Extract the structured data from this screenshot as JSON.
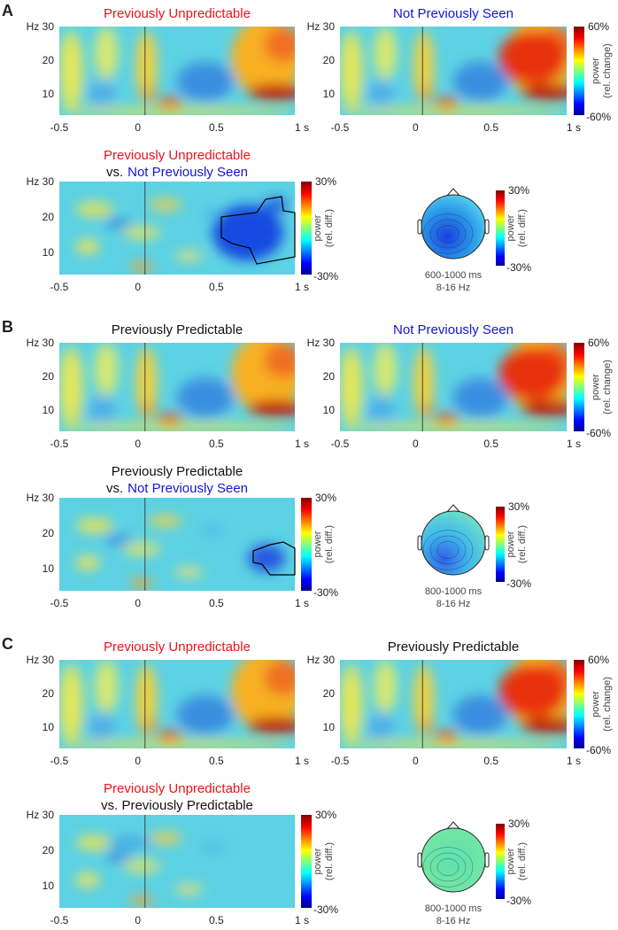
{
  "axes": {
    "yticks": [
      "Hz 30",
      "20",
      "10"
    ],
    "xticks": [
      "-0.5",
      "0",
      "0.5",
      "1 s"
    ]
  },
  "condition_colorbar": {
    "max": "60%",
    "min": "-60%",
    "label": [
      "power",
      "(rel. change)"
    ]
  },
  "difference_colorbar": {
    "max": "30%",
    "min": "-30%",
    "label": [
      "power",
      "(rel. diff.)"
    ]
  },
  "panels": [
    {
      "label": "A",
      "top_left": [
        {
          "text": "Previously Unpredictable",
          "color": "#e8141c"
        }
      ],
      "top_right": [
        {
          "text": "Not Previously Seen",
          "color": "#1414d8"
        }
      ],
      "contrast": [
        [
          {
            "text": "Previously Unpredictable",
            "color": "#e8141c"
          }
        ],
        [
          {
            "text": "vs.",
            "color": "#111111"
          },
          {
            "text": "Not Previously Seen",
            "color": "#1414d8"
          }
        ]
      ],
      "topo": {
        "window": "600-1000 ms",
        "band": "8-16 Hz"
      }
    },
    {
      "label": "B",
      "top_left": [
        {
          "text": "Previously Predictable",
          "color": "#111111"
        }
      ],
      "top_right": [
        {
          "text": "Not Previously Seen",
          "color": "#1414d8"
        }
      ],
      "contrast": [
        [
          {
            "text": "Previously Predictable",
            "color": "#111111"
          }
        ],
        [
          {
            "text": "vs.",
            "color": "#111111"
          },
          {
            "text": "Not Previously Seen",
            "color": "#1414d8"
          }
        ]
      ],
      "topo": {
        "window": "800-1000 ms",
        "band": "8-16 Hz"
      }
    },
    {
      "label": "C",
      "top_left": [
        {
          "text": "Previously Unpredictable",
          "color": "#e8141c"
        }
      ],
      "top_right": [
        {
          "text": "Previously Predictable",
          "color": "#111111"
        }
      ],
      "contrast": [
        [
          {
            "text": "Previously Unpredictable",
            "color": "#e8141c"
          }
        ],
        [
          {
            "text": "vs. Previously Predictable",
            "color": "#111111"
          }
        ]
      ],
      "topo": {
        "window": "800-1000 ms",
        "band": "8-16 Hz"
      }
    }
  ]
}
